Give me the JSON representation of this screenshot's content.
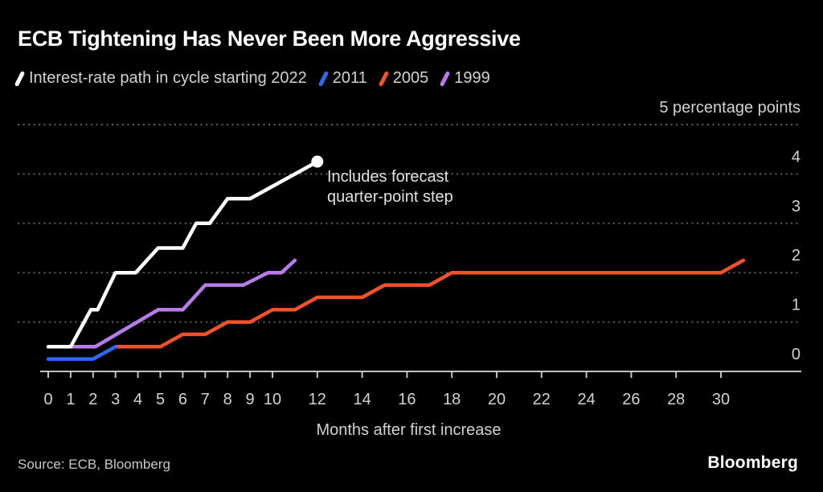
{
  "title": "ECB Tightening Has Never Been More Aggressive",
  "axis_title_x": "Months after first increase",
  "source_note": "Source: ECB, Bloomberg",
  "brand": "Bloomberg",
  "colors": {
    "background": "#000000",
    "grid": "#5f5f5f",
    "axis": "#c2c2c2",
    "tick_text": "#d2d2d2",
    "title_text": "#ffffff"
  },
  "chart_data": {
    "type": "line",
    "title": "ECB Tightening Has Never Been More Aggressive",
    "xlabel": "Months after first increase",
    "ylabel": "percentage points",
    "xlim": [
      0,
      33.6
    ],
    "ylim": [
      0,
      5
    ],
    "grid": true,
    "grid_style": "dotted",
    "legend_position": "top",
    "x_ticks": [
      0,
      1,
      2,
      3,
      4,
      5,
      6,
      7,
      8,
      9,
      10,
      12,
      14,
      16,
      18,
      20,
      22,
      24,
      26,
      28,
      30
    ],
    "y_ticks": [
      0,
      1,
      2,
      3,
      4,
      5
    ],
    "y_tick_labels": [
      "0",
      "1",
      "2",
      "3",
      "4",
      "5 percentage points"
    ],
    "annotation": {
      "line1": "Includes forecast",
      "line2": "quarter-point step",
      "anchor_month": 12,
      "anchor_value": 4.25
    },
    "series": [
      {
        "name": "Interest-rate path in cycle starting 2022",
        "color": "#ffffff",
        "end_marker": true,
        "points": [
          [
            0,
            0.5
          ],
          [
            1,
            0.5
          ],
          [
            1.9,
            1.25
          ],
          [
            2.2,
            1.25
          ],
          [
            3,
            2.0
          ],
          [
            3.9,
            2.0
          ],
          [
            4.9,
            2.5
          ],
          [
            6,
            2.5
          ],
          [
            6.6,
            3.0
          ],
          [
            7.2,
            3.0
          ],
          [
            8,
            3.5
          ],
          [
            9,
            3.5
          ],
          [
            12,
            4.25
          ]
        ]
      },
      {
        "name": "2011",
        "color": "#2a6bf2",
        "end_marker": false,
        "points": [
          [
            0,
            0.25
          ],
          [
            2,
            0.25
          ],
          [
            3,
            0.5
          ]
        ]
      },
      {
        "name": "2005",
        "color": "#f0522b",
        "end_marker": false,
        "points": [
          [
            3,
            0.5
          ],
          [
            5,
            0.5
          ],
          [
            6,
            0.75
          ],
          [
            7,
            0.75
          ],
          [
            8,
            1.0
          ],
          [
            9,
            1.0
          ],
          [
            10,
            1.25
          ],
          [
            11,
            1.25
          ],
          [
            12,
            1.5
          ],
          [
            14,
            1.5
          ],
          [
            15,
            1.75
          ],
          [
            17,
            1.75
          ],
          [
            18,
            2.0
          ],
          [
            30,
            2.0
          ],
          [
            31,
            2.25
          ]
        ]
      },
      {
        "name": "1999",
        "color": "#b67ce8",
        "end_marker": false,
        "points": [
          [
            0,
            0.5
          ],
          [
            2.1,
            0.5
          ],
          [
            4.9,
            1.25
          ],
          [
            6,
            1.25
          ],
          [
            7,
            1.75
          ],
          [
            8.7,
            1.75
          ],
          [
            9.8,
            2.0
          ],
          [
            10.4,
            2.0
          ],
          [
            11,
            2.25
          ]
        ]
      }
    ]
  }
}
